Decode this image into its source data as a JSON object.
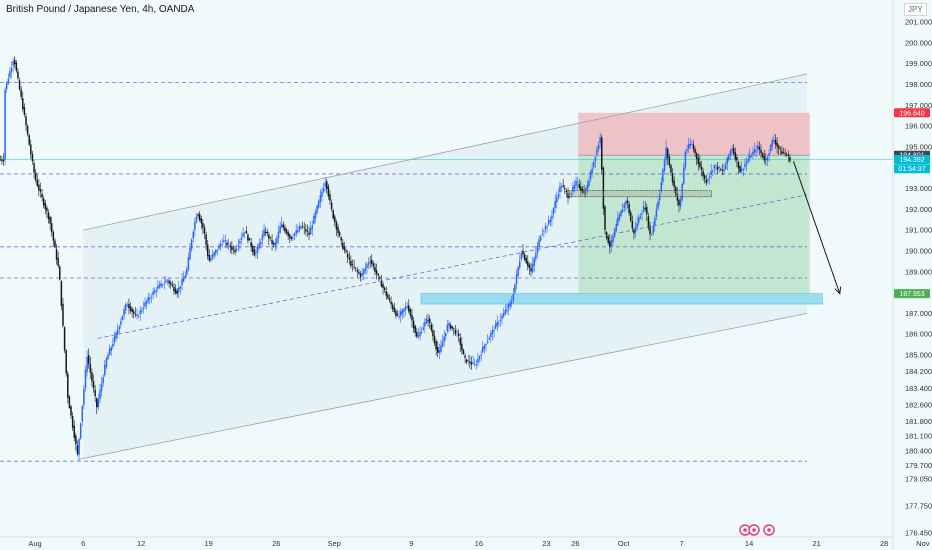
{
  "header": {
    "title": "British Pound / Japanese Yen, 4h, OANDA",
    "currency": "JPY"
  },
  "chart_data": {
    "type": "candlestick",
    "price_range": [
      176.45,
      201.5
    ],
    "price_ticks": [
      {
        "label": "201.000",
        "v": 201.0
      },
      {
        "label": "200.000",
        "v": 200.0
      },
      {
        "label": "199.000",
        "v": 199.0
      },
      {
        "label": "198.000",
        "v": 198.0
      },
      {
        "label": "197.000",
        "v": 197.0
      },
      {
        "label": "196.000",
        "v": 196.0
      },
      {
        "label": "195.000",
        "v": 195.0
      },
      {
        "label": "193.000",
        "v": 193.0
      },
      {
        "label": "192.000",
        "v": 192.0
      },
      {
        "label": "191.000",
        "v": 191.0
      },
      {
        "label": "190.000",
        "v": 190.0
      },
      {
        "label": "189.000",
        "v": 189.0
      },
      {
        "label": "187.000",
        "v": 187.0
      },
      {
        "label": "186.000",
        "v": 186.0
      },
      {
        "label": "185.000",
        "v": 185.0
      },
      {
        "label": "184.200",
        "v": 184.2
      },
      {
        "label": "183.400",
        "v": 183.4
      },
      {
        "label": "182.600",
        "v": 182.6
      },
      {
        "label": "181.800",
        "v": 181.8
      },
      {
        "label": "181.100",
        "v": 181.1
      },
      {
        "label": "180.400",
        "v": 180.4
      },
      {
        "label": "179.700",
        "v": 179.7
      },
      {
        "label": "179.050",
        "v": 179.05
      },
      {
        "label": "177.750",
        "v": 177.75
      },
      {
        "label": "176.450",
        "v": 176.45
      }
    ],
    "date_ticks": [
      {
        "label": "Aug",
        "d": 0
      },
      {
        "label": "6",
        "d": 5
      },
      {
        "label": "12",
        "d": 11
      },
      {
        "label": "19",
        "d": 18
      },
      {
        "label": "26",
        "d": 25
      },
      {
        "label": "Sep",
        "d": 31
      },
      {
        "label": "9",
        "d": 39
      },
      {
        "label": "16",
        "d": 46
      },
      {
        "label": "23",
        "d": 53
      },
      {
        "label": "26",
        "d": 56
      },
      {
        "label": "Oct",
        "d": 61
      },
      {
        "label": "7",
        "d": 67
      },
      {
        "label": "14",
        "d": 74
      },
      {
        "label": "21",
        "d": 81
      },
      {
        "label": "28",
        "d": 88
      },
      {
        "label": "Nov",
        "d": 92
      }
    ],
    "price_labels": [
      {
        "value": "196.640",
        "v": 196.64,
        "color": "#f23645"
      },
      {
        "value": "194.601",
        "v": 194.601,
        "color": "#434651"
      },
      {
        "value": "194.392",
        "v": 194.392,
        "color": "#00bcd4"
      },
      {
        "value": "01:54:37",
        "v": 193.95,
        "color": "#00bcd4"
      },
      {
        "value": "187.953",
        "v": 187.953,
        "color": "#4caf50"
      }
    ],
    "horizontal_levels": [
      198.1,
      193.7,
      190.2,
      188.7,
      179.9
    ],
    "anchors": [
      {
        "d": -3.2,
        "p": 197.6
      },
      {
        "d": -2.2,
        "p": 199.3
      },
      {
        "d": -1.3,
        "p": 197.0
      },
      {
        "d": 0,
        "p": 193.5
      },
      {
        "d": 1.5,
        "p": 191.5
      },
      {
        "d": 2.5,
        "p": 189.0
      },
      {
        "d": 3.4,
        "p": 183.0
      },
      {
        "d": 4.4,
        "p": 180.2
      },
      {
        "d": 5.4,
        "p": 185.0
      },
      {
        "d": 6.4,
        "p": 182.5
      },
      {
        "d": 7.4,
        "p": 184.8
      },
      {
        "d": 8.4,
        "p": 186.0
      },
      {
        "d": 9.5,
        "p": 187.5
      },
      {
        "d": 10.5,
        "p": 186.8
      },
      {
        "d": 11.6,
        "p": 187.6
      },
      {
        "d": 12.6,
        "p": 188.2
      },
      {
        "d": 13.7,
        "p": 188.6
      },
      {
        "d": 14.7,
        "p": 188.0
      },
      {
        "d": 15.7,
        "p": 189.0
      },
      {
        "d": 16.3,
        "p": 190.8
      },
      {
        "d": 16.8,
        "p": 191.9
      },
      {
        "d": 17.5,
        "p": 191.0
      },
      {
        "d": 18.0,
        "p": 189.5
      },
      {
        "d": 19.5,
        "p": 190.5
      },
      {
        "d": 20.7,
        "p": 190.0
      },
      {
        "d": 21.7,
        "p": 191.0
      },
      {
        "d": 22.8,
        "p": 189.8
      },
      {
        "d": 23.8,
        "p": 191.0
      },
      {
        "d": 24.8,
        "p": 190.2
      },
      {
        "d": 25.5,
        "p": 191.3
      },
      {
        "d": 26.5,
        "p": 190.6
      },
      {
        "d": 27.6,
        "p": 191.2
      },
      {
        "d": 28.4,
        "p": 190.8
      },
      {
        "d": 29.5,
        "p": 192.5
      },
      {
        "d": 30.1,
        "p": 193.4
      },
      {
        "d": 30.8,
        "p": 191.8
      },
      {
        "d": 31.8,
        "p": 190.3
      },
      {
        "d": 32.8,
        "p": 189.3
      },
      {
        "d": 33.8,
        "p": 188.8
      },
      {
        "d": 34.7,
        "p": 189.6
      },
      {
        "d": 35.7,
        "p": 188.6
      },
      {
        "d": 36.7,
        "p": 187.6
      },
      {
        "d": 37.6,
        "p": 186.8
      },
      {
        "d": 38.6,
        "p": 187.4
      },
      {
        "d": 39.6,
        "p": 185.8
      },
      {
        "d": 40.7,
        "p": 186.8
      },
      {
        "d": 41.8,
        "p": 185.0
      },
      {
        "d": 42.8,
        "p": 186.5
      },
      {
        "d": 43.8,
        "p": 186.0
      },
      {
        "d": 44.5,
        "p": 184.8
      },
      {
        "d": 45.6,
        "p": 184.5
      },
      {
        "d": 46.6,
        "p": 185.5
      },
      {
        "d": 47.6,
        "p": 186.3
      },
      {
        "d": 48.6,
        "p": 187.0
      },
      {
        "d": 49.4,
        "p": 187.6
      },
      {
        "d": 50.4,
        "p": 190.0
      },
      {
        "d": 51.4,
        "p": 189.0
      },
      {
        "d": 52.4,
        "p": 190.8
      },
      {
        "d": 53.4,
        "p": 191.5
      },
      {
        "d": 54.0,
        "p": 192.5
      },
      {
        "d": 54.5,
        "p": 193.2
      },
      {
        "d": 55.3,
        "p": 192.6
      },
      {
        "d": 56.1,
        "p": 193.3
      },
      {
        "d": 57.0,
        "p": 192.7
      },
      {
        "d": 58.0,
        "p": 194.5
      },
      {
        "d": 58.6,
        "p": 195.5
      },
      {
        "d": 59.0,
        "p": 191.0
      },
      {
        "d": 59.6,
        "p": 190.2
      },
      {
        "d": 60.4,
        "p": 191.5
      },
      {
        "d": 61.3,
        "p": 192.5
      },
      {
        "d": 62.0,
        "p": 190.8
      },
      {
        "d": 62.5,
        "p": 191.5
      },
      {
        "d": 63.2,
        "p": 192.2
      },
      {
        "d": 63.8,
        "p": 190.6
      },
      {
        "d": 64.8,
        "p": 193.0
      },
      {
        "d": 65.4,
        "p": 194.9
      },
      {
        "d": 66.0,
        "p": 193.5
      },
      {
        "d": 66.8,
        "p": 192.0
      },
      {
        "d": 67.4,
        "p": 194.8
      },
      {
        "d": 68.0,
        "p": 195.2
      },
      {
        "d": 68.7,
        "p": 194.3
      },
      {
        "d": 69.5,
        "p": 193.3
      },
      {
        "d": 70.4,
        "p": 194.1
      },
      {
        "d": 71.3,
        "p": 193.8
      },
      {
        "d": 72.2,
        "p": 195.0
      },
      {
        "d": 73.1,
        "p": 193.8
      },
      {
        "d": 74.0,
        "p": 194.5
      },
      {
        "d": 74.9,
        "p": 195.0
      },
      {
        "d": 75.7,
        "p": 194.3
      },
      {
        "d": 76.5,
        "p": 195.4
      },
      {
        "d": 77.2,
        "p": 194.8
      },
      {
        "d": 77.9,
        "p": 194.6
      },
      {
        "d": 78.3,
        "p": 194.392
      }
    ],
    "channel_upper": [
      {
        "d": 5,
        "p": 191.0
      },
      {
        "d": 80,
        "p": 198.5
      }
    ],
    "channel_lower": [
      {
        "d": 5,
        "p": 180.0
      },
      {
        "d": 80,
        "p": 187.0
      }
    ],
    "channel_mid": [
      {
        "d": 6.5,
        "p": 185.8
      },
      {
        "d": 80,
        "p": 192.7
      }
    ],
    "position": {
      "d0": 56.3,
      "d1": 80.3,
      "entry": 194.601,
      "stop": 196.64,
      "target": 187.953
    },
    "demand_zone": {
      "d0": 40.0,
      "d1": 81.6,
      "top": 187.95,
      "bottom": 187.45
    },
    "small_boxes": [
      {
        "d0": 55.2,
        "d1": 70.1,
        "top": 192.9,
        "bottom": 192.6
      }
    ],
    "arrow": [
      {
        "d": 78.6,
        "p": 194.3
      },
      {
        "d": 83.4,
        "p": 187.95
      }
    ]
  }
}
